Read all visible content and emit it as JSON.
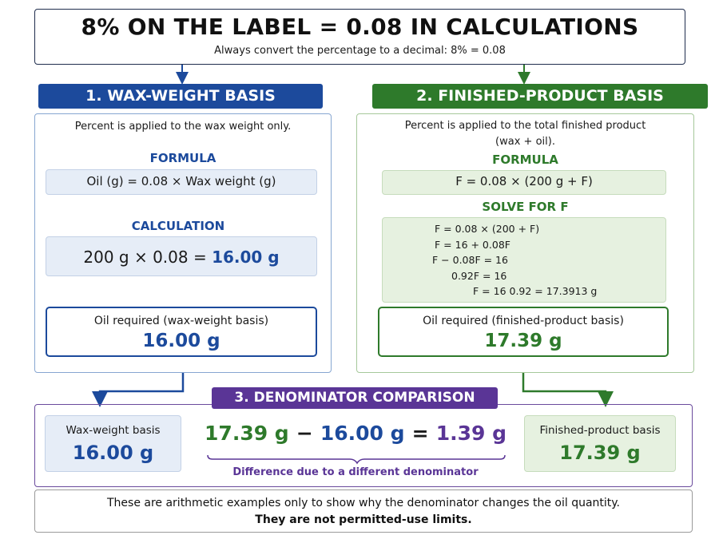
{
  "header": {
    "title": "8% ON THE LABEL = 0.08 IN CALCULATIONS",
    "subtitle": "Always convert the percentage to a decimal: 8% = 0.08"
  },
  "wax_basis": {
    "banner": "1. WAX-WEIGHT BASIS",
    "intro": "Percent is applied to the wax weight only.",
    "formula_heading": "FORMULA",
    "formula": "Oil (g) = 0.08 × Wax weight (g)",
    "calc_heading": "CALCULATION",
    "calc_lhs": "200 g × 0.08 = ",
    "calc_result": "16.00 g",
    "result_label": "Oil required (wax-weight basis)",
    "result_value": "16.00 g"
  },
  "finished_basis": {
    "banner": "2. FINISHED-PRODUCT BASIS",
    "intro_line1": "Percent is applied to the total finished product",
    "intro_line2": "(wax + oil).",
    "formula_heading": "FORMULA",
    "formula": "F = 0.08 × (200 g + F)",
    "solve_heading": "SOLVE FOR F",
    "solve_steps": [
      "F = 0.08 × (200 + F)",
      "F = 16 + 0.08F",
      "F − 0.08F = 16",
      "0.92F = 16",
      "F = 16 0.92 = 17.3913 g"
    ],
    "result_label": "Oil required (finished-product basis)",
    "result_value": "17.39 g"
  },
  "comparison": {
    "banner": "3. DENOMINATOR COMPARISON",
    "left_label": "Wax-weight basis",
    "left_value": "16.00 g",
    "right_label": "Finished-product basis",
    "right_value": "17.39 g",
    "eq_a": "17.39 g",
    "eq_minus": "−",
    "eq_b": "16.00 g",
    "eq_equals": "=",
    "eq_result": "1.39 g",
    "note": "Difference due to a different denominator"
  },
  "footer": {
    "line1": "These are arithmetic examples only to show why the denominator changes the oil quantity.",
    "line2": "They are not permitted-use limits."
  },
  "colors": {
    "blue": "#1c4a9c",
    "green": "#2e7a2b",
    "purple": "#5a3596"
  }
}
